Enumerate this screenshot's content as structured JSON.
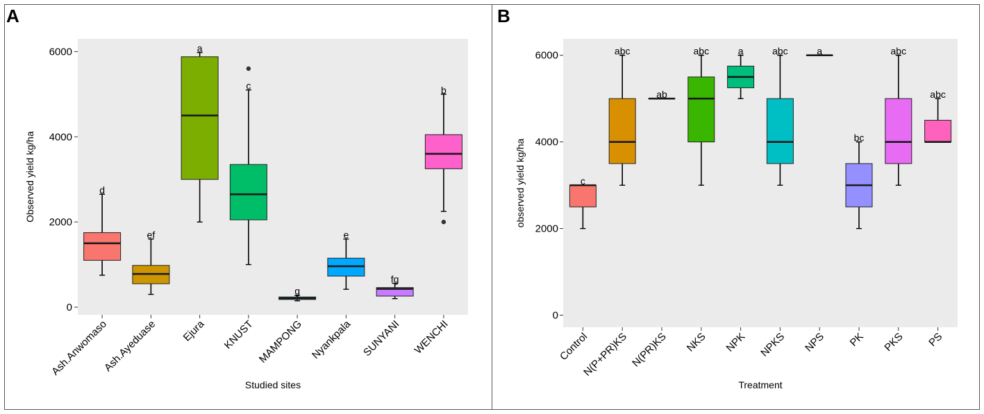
{
  "panel_labels": [
    "A",
    "B"
  ],
  "chart_data": [
    {
      "type": "box",
      "panel": "A",
      "title": "",
      "xlabel": "Studied sites",
      "ylabel": "Observed yield kg/ha",
      "ylim": [
        -180,
        6300
      ],
      "yticks": [
        0,
        2000,
        4000,
        6000
      ],
      "background": "#ebebeb",
      "grid": false,
      "categories": [
        "Ash.Anwomaso",
        "Ash.Ayeduase",
        "Ejura",
        "KNUST",
        "MAMPONG",
        "Nyankpala",
        "SUNYANI",
        "WENCHI"
      ],
      "boxes": [
        {
          "category": "Ash.Anwomaso",
          "whisker_low": 750,
          "q1": 1100,
          "median": 1500,
          "q3": 1750,
          "whisker_high": 2650,
          "outliers": [],
          "letter": "d",
          "color": "#f8766d"
        },
        {
          "category": "Ash.Ayeduase",
          "whisker_low": 300,
          "q1": 550,
          "median": 780,
          "q3": 980,
          "whisker_high": 1600,
          "outliers": [],
          "letter": "ef",
          "color": "#cd9600"
        },
        {
          "category": "Ejura",
          "whisker_low": 2000,
          "q1": 3000,
          "median": 4500,
          "q3": 5880,
          "whisker_high": 5980,
          "outliers": [],
          "letter": "a",
          "color": "#7cae00"
        },
        {
          "category": "KNUST",
          "whisker_low": 1000,
          "q1": 2050,
          "median": 2650,
          "q3": 3350,
          "whisker_high": 5100,
          "outliers": [
            5600
          ],
          "letter": "c",
          "color": "#00be67"
        },
        {
          "category": "MAMPONG",
          "whisker_low": 150,
          "q1": 180,
          "median": 210,
          "q3": 240,
          "whisker_high": 280,
          "outliers": [],
          "letter": "g",
          "color": "#00bfc4"
        },
        {
          "category": "Nyankpala",
          "whisker_low": 420,
          "q1": 730,
          "median": 960,
          "q3": 1150,
          "whisker_high": 1600,
          "outliers": [],
          "letter": "e",
          "color": "#00a9ff"
        },
        {
          "category": "SUNYANI",
          "whisker_low": 200,
          "q1": 260,
          "median": 430,
          "q3": 460,
          "whisker_high": 560,
          "outliers": [],
          "letter": "fg",
          "color": "#c77cff"
        },
        {
          "category": "WENCHI",
          "whisker_low": 2250,
          "q1": 3250,
          "median": 3600,
          "q3": 4050,
          "whisker_high": 5000,
          "outliers": [
            2000
          ],
          "letter": "b",
          "color": "#ff61cc"
        }
      ]
    },
    {
      "type": "box",
      "panel": "B",
      "title": "",
      "xlabel": "Treatment",
      "ylabel": "observed yield kg/ha",
      "ylim": [
        -280,
        6380
      ],
      "yticks": [
        0,
        2000,
        4000,
        6000
      ],
      "background": "#ebebeb",
      "grid": false,
      "categories": [
        "Control",
        "N(P+PR)KS",
        "N(PR)KS",
        "NKS",
        "NPK",
        "NPKS",
        "NPS",
        "PK",
        "PKS",
        "PS"
      ],
      "boxes": [
        {
          "category": "Control",
          "whisker_low": 2000,
          "q1": 2500,
          "median": 3000,
          "q3": 3000,
          "whisker_high": 3000,
          "outliers": [],
          "letter": "c",
          "color": "#f8766d"
        },
        {
          "category": "N(P+PR)KS",
          "whisker_low": 3000,
          "q1": 3500,
          "median": 4000,
          "q3": 5000,
          "whisker_high": 6000,
          "outliers": [],
          "letter": "abc",
          "color": "#d89000"
        },
        {
          "category": "N(PR)KS",
          "whisker_low": 5000,
          "q1": 5000,
          "median": 5000,
          "q3": 5000,
          "whisker_high": 5000,
          "outliers": [],
          "letter": "ab",
          "color": "#a3a500"
        },
        {
          "category": "NKS",
          "whisker_low": 3000,
          "q1": 4000,
          "median": 5000,
          "q3": 5500,
          "whisker_high": 6000,
          "outliers": [],
          "letter": "abc",
          "color": "#39b600"
        },
        {
          "category": "NPK",
          "whisker_low": 5000,
          "q1": 5250,
          "median": 5500,
          "q3": 5750,
          "whisker_high": 6000,
          "outliers": [],
          "letter": "a",
          "color": "#00bf7d"
        },
        {
          "category": "NPKS",
          "whisker_low": 3000,
          "q1": 3500,
          "median": 4000,
          "q3": 5000,
          "whisker_high": 6000,
          "outliers": [],
          "letter": "abc",
          "color": "#00bfc4"
        },
        {
          "category": "NPS",
          "whisker_low": 6000,
          "q1": 6000,
          "median": 6000,
          "q3": 6000,
          "whisker_high": 6000,
          "outliers": [],
          "letter": "a",
          "color": "#00b0f6"
        },
        {
          "category": "PK",
          "whisker_low": 2000,
          "q1": 2500,
          "median": 3000,
          "q3": 3500,
          "whisker_high": 4000,
          "outliers": [],
          "letter": "bc",
          "color": "#9590ff"
        },
        {
          "category": "PKS",
          "whisker_low": 3000,
          "q1": 3500,
          "median": 4000,
          "q3": 5000,
          "whisker_high": 6000,
          "outliers": [],
          "letter": "abc",
          "color": "#e76bf3"
        },
        {
          "category": "PS",
          "whisker_low": 4000,
          "q1": 4000,
          "median": 4000,
          "q3": 4500,
          "whisker_high": 5000,
          "outliers": [],
          "letter": "abc",
          "color": "#ff62bc"
        }
      ]
    }
  ]
}
